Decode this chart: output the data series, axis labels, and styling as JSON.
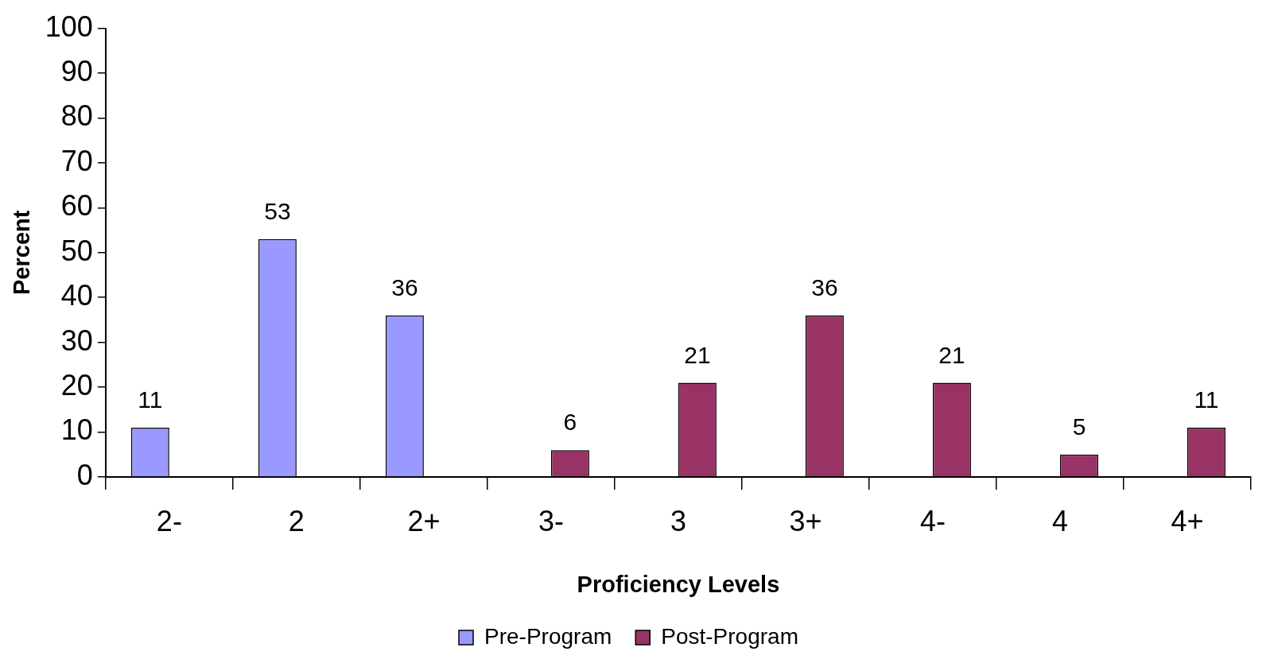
{
  "chart_data": {
    "type": "bar",
    "xlabel": "Proficiency Levels",
    "ylabel": "Percent",
    "categories": [
      "2-",
      "2",
      "2+",
      "3-",
      "3",
      "3+",
      "4-",
      "4",
      "4+"
    ],
    "series": [
      {
        "name": "Pre-Program",
        "color": "#9999ff",
        "values": [
          11,
          53,
          36,
          null,
          null,
          null,
          null,
          null,
          null
        ]
      },
      {
        "name": "Post-Program",
        "color": "#993366",
        "values": [
          null,
          null,
          null,
          6,
          21,
          36,
          21,
          5,
          11
        ]
      }
    ],
    "ylim": [
      0,
      100
    ],
    "yticks": [
      0,
      10,
      20,
      30,
      40,
      50,
      60,
      70,
      80,
      90,
      100
    ],
    "grid": false,
    "legend": "bottom",
    "data_labels": true
  }
}
